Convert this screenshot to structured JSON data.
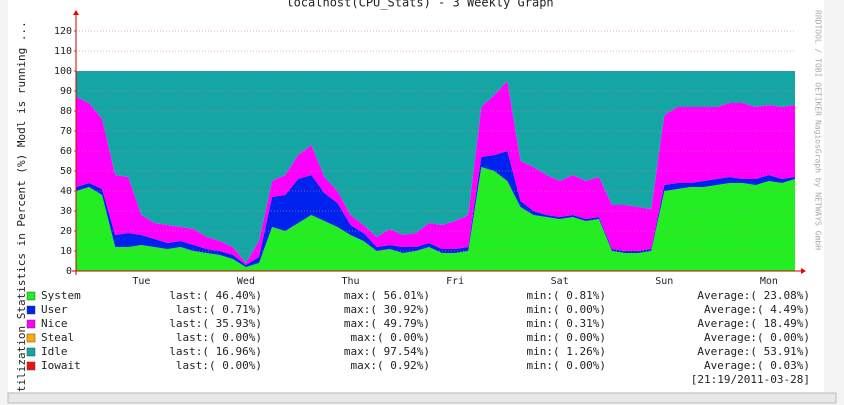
{
  "chart_data": {
    "type": "stacked-area",
    "title": "localhost(CPU_Stats) - 3 Weekly Graph",
    "y_label": "Utilization Statistics in Percent (%) Modl is running ...",
    "side_text": [
      "RRDTOOL / TOBI OETIKER",
      "NagiosGraph by NETWAYS GmbH"
    ],
    "timestamp": "[21:19/2011-03-28]",
    "categories": [
      null,
      null,
      null,
      null,
      null,
      "Tue",
      null,
      null,
      null,
      null,
      null,
      null,
      null,
      "Wed",
      null,
      null,
      null,
      null,
      null,
      null,
      null,
      "Thu",
      null,
      null,
      null,
      null,
      null,
      null,
      null,
      "Fri",
      null,
      null,
      null,
      null,
      null,
      null,
      null,
      "Sat",
      null,
      null,
      null,
      null,
      null,
      null,
      null,
      "Sun",
      null,
      null,
      null,
      null,
      null,
      null,
      null,
      "Mon",
      null,
      null
    ],
    "ylim": [
      0,
      125
    ],
    "yticks": [
      0,
      10,
      20,
      30,
      40,
      50,
      60,
      70,
      80,
      90,
      100,
      110,
      120
    ],
    "grid": true,
    "series": [
      {
        "name": "System",
        "color": "#22ee22",
        "last": "last:( 46.40%)",
        "max": "max:( 56.01%)",
        "min": "min:(  0.81%)",
        "average": "Average:( 23.08%)",
        "values": [
          40,
          42,
          38,
          12,
          12,
          13,
          12,
          11,
          12,
          10,
          9,
          8,
          6,
          2,
          4,
          22,
          20,
          24,
          28,
          25,
          22,
          18,
          15,
          10,
          11,
          9,
          10,
          12,
          9,
          9,
          10,
          52,
          50,
          45,
          32,
          28,
          27,
          26,
          27,
          25,
          26,
          10,
          9,
          9,
          10,
          40,
          41,
          42,
          42,
          43,
          44,
          44,
          43,
          45,
          44,
          46
        ]
      },
      {
        "name": "User",
        "color": "#0022ee",
        "last": "last:(  0.71%)",
        "max": "max:( 30.92%)",
        "min": "min:(  0.00%)",
        "average": "Average:(  4.49%)",
        "values": [
          2,
          2,
          3,
          6,
          7,
          5,
          4,
          3,
          3,
          3,
          2,
          2,
          2,
          1,
          3,
          15,
          18,
          22,
          20,
          14,
          12,
          5,
          4,
          2,
          2,
          3,
          2,
          2,
          2,
          2,
          2,
          5,
          8,
          15,
          3,
          2,
          1,
          1,
          1,
          1,
          1,
          1,
          1,
          1,
          1,
          3,
          3,
          2,
          3,
          3,
          3,
          2,
          3,
          3,
          2,
          1
        ]
      },
      {
        "name": "Nice",
        "color": "#ff00ff",
        "last": "last:( 35.93%)",
        "max": "max:( 49.79%)",
        "min": "min:(  0.31%)",
        "average": "Average:( 18.49%)",
        "values": [
          45,
          40,
          35,
          30,
          28,
          10,
          8,
          9,
          7,
          8,
          6,
          5,
          4,
          1,
          8,
          8,
          10,
          12,
          15,
          8,
          6,
          5,
          4,
          5,
          8,
          6,
          7,
          10,
          12,
          14,
          16,
          25,
          30,
          35,
          20,
          22,
          20,
          18,
          20,
          19,
          20,
          22,
          23,
          22,
          20,
          35,
          38,
          38,
          37,
          36,
          37,
          38,
          36,
          35,
          36,
          36
        ]
      },
      {
        "name": "Steal",
        "color": "#ffaa00",
        "last": "last:(  0.00%)",
        "max": "max:(  0.00%)",
        "min": "min:(  0.00%)",
        "average": "Average:(  0.00%)",
        "values": [
          0,
          0,
          0,
          0,
          0,
          0,
          0,
          0,
          0,
          0,
          0,
          0,
          0,
          0,
          0,
          0,
          0,
          0,
          0,
          0,
          0,
          0,
          0,
          0,
          0,
          0,
          0,
          0,
          0,
          0,
          0,
          0,
          0,
          0,
          0,
          0,
          0,
          0,
          0,
          0,
          0,
          0,
          0,
          0,
          0,
          0,
          0,
          0,
          0,
          0,
          0,
          0,
          0,
          0,
          0,
          0
        ]
      },
      {
        "name": "Idle",
        "color": "#15a5a5",
        "last": "last:( 16.96%)",
        "max": "max:( 97.54%)",
        "min": "min:(  1.26%)",
        "average": "Average:( 53.91%)",
        "values": [
          13,
          16,
          24,
          52,
          53,
          72,
          76,
          77,
          78,
          79,
          83,
          85,
          88,
          96,
          85,
          55,
          52,
          42,
          37,
          53,
          60,
          72,
          77,
          83,
          79,
          82,
          81,
          76,
          77,
          75,
          72,
          18,
          12,
          5,
          45,
          48,
          52,
          55,
          52,
          55,
          53,
          67,
          67,
          68,
          69,
          22,
          18,
          18,
          18,
          18,
          16,
          16,
          18,
          17,
          18,
          17
        ]
      },
      {
        "name": "Iowait",
        "color": "#ee1111",
        "last": "last:(  0.00%)",
        "max": "max:(  0.92%)",
        "min": "min:(  0.00%)",
        "average": "Average:(  0.03%)",
        "values": [
          0,
          0,
          0,
          0,
          0,
          0,
          0,
          0,
          0,
          0,
          0,
          0,
          0,
          0,
          0,
          0,
          0,
          0,
          0,
          0,
          0,
          0,
          0,
          0,
          0,
          0,
          0,
          0,
          0,
          0,
          0,
          0,
          0,
          0,
          0,
          0,
          0,
          0,
          0,
          0,
          0,
          0,
          0,
          0,
          0,
          0,
          0,
          0,
          0,
          0,
          0,
          0,
          0,
          0,
          0,
          0
        ]
      }
    ]
  }
}
